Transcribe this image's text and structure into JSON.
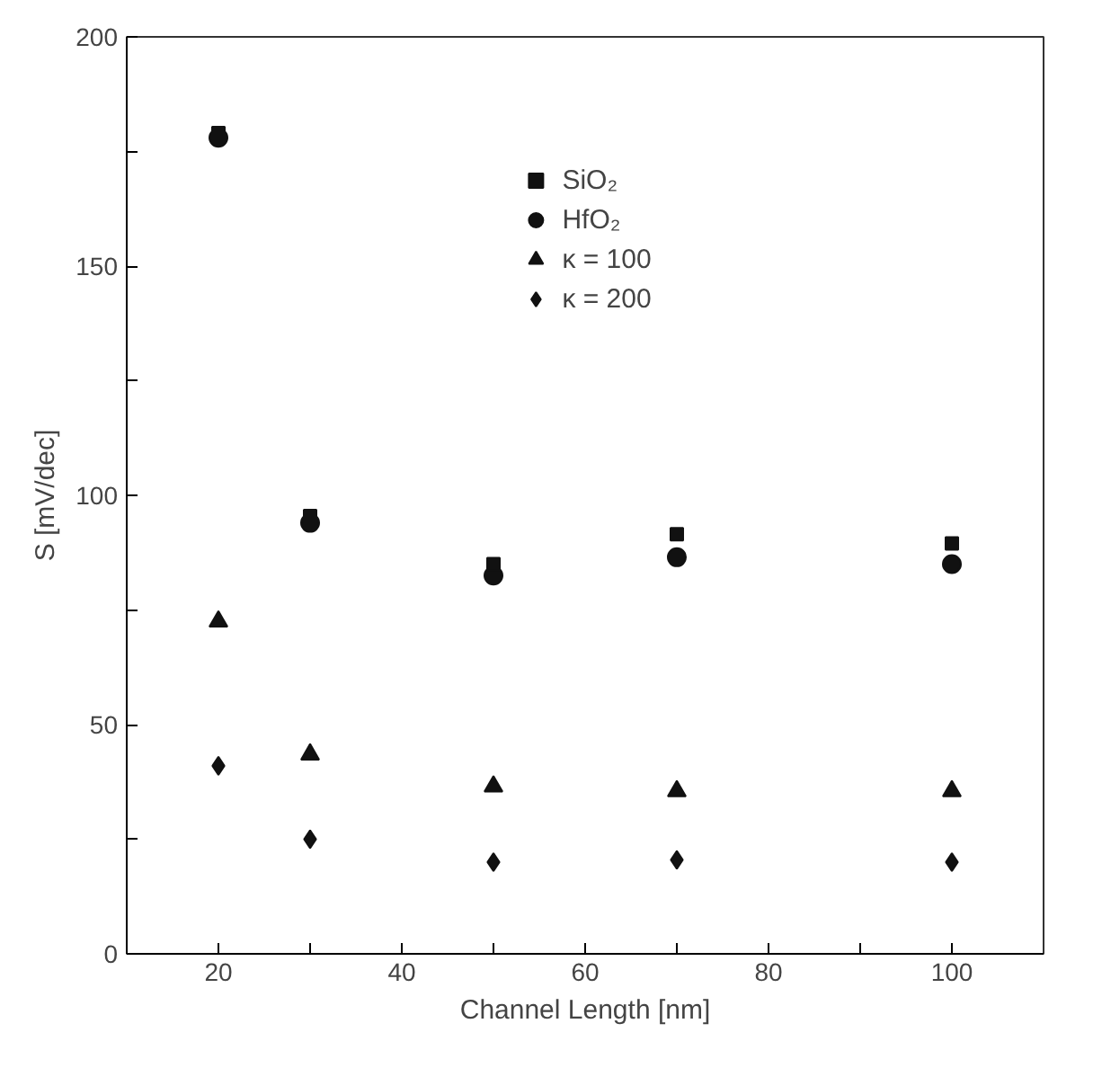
{
  "chart_data": {
    "type": "scatter",
    "xlabel": "Channel Length [nm]",
    "ylabel": "S [mV/dec]",
    "x": [
      20,
      30,
      50,
      70,
      100
    ],
    "series": [
      {
        "name": "SiO₂",
        "color": "#111111",
        "marker": "square",
        "values": [
          179,
          95.5,
          85,
          91.5,
          89.5
        ]
      },
      {
        "name": "HfO₂",
        "color": "#111111",
        "marker": "circle",
        "values": [
          178,
          94,
          82.5,
          86.5,
          85
        ]
      },
      {
        "name": "κ = 100",
        "color": "#111111",
        "marker": "triangle",
        "values": [
          72.5,
          43.5,
          36.5,
          35.5,
          35.5
        ]
      },
      {
        "name": "κ = 200",
        "color": "#111111",
        "marker": "diamond",
        "values": [
          41,
          25,
          20,
          20.5,
          20
        ]
      }
    ],
    "xlim": [
      10,
      110
    ],
    "ylim": [
      0,
      200
    ],
    "xticks": [
      {
        "value": 10,
        "label": null
      },
      20,
      {
        "value": 30,
        "label": null
      },
      40,
      {
        "value": 50,
        "label": null
      },
      60,
      {
        "value": 70,
        "label": null
      },
      80,
      {
        "value": 90,
        "label": null
      },
      100
    ],
    "yticks": [
      0,
      {
        "value": 25,
        "label": null
      },
      50,
      {
        "value": 75,
        "label": null
      },
      100,
      {
        "value": 125,
        "label": null
      },
      150,
      {
        "value": 175,
        "label": null
      },
      200
    ],
    "grid": false,
    "legend": "top"
  }
}
